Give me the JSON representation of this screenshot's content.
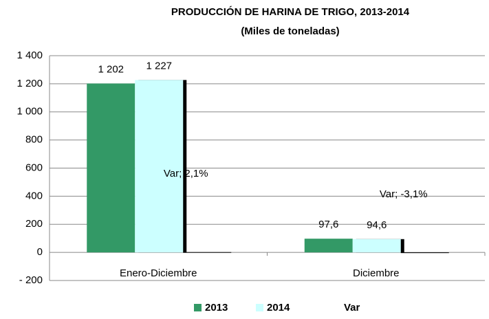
{
  "chart_data": {
    "type": "bar",
    "title": "PRODUCCIÓN DE HARINA DE TRIGO,  2013-2014",
    "subtitle": "(Miles de toneladas)",
    "categories": [
      "Enero-Diciembre",
      "Diciembre"
    ],
    "series": [
      {
        "name": "2013",
        "color": "#339966",
        "values": [
          1202,
          97.6
        ],
        "value_labels": [
          "1 202",
          "97,6"
        ]
      },
      {
        "name": "2014",
        "color": "#ccffff",
        "values": [
          1227,
          94.6
        ],
        "value_labels": [
          "1 227",
          "94,6"
        ]
      },
      {
        "name": "Var",
        "color": "#000000",
        "values": [
          2.1,
          -3.1
        ],
        "value_labels": [
          "Var; 2,1%",
          "Var; -3,1%"
        ]
      }
    ],
    "ylim": [
      -200,
      1400
    ],
    "yticks": [
      {
        "value": -200,
        "label": "- 200"
      },
      0,
      200,
      400,
      600,
      800,
      {
        "value": 1000,
        "label": "1 000"
      },
      {
        "value": 1200,
        "label": "1 200"
      },
      {
        "value": 1400,
        "label": "1 400"
      }
    ],
    "grid": true,
    "legend": "bottom"
  }
}
